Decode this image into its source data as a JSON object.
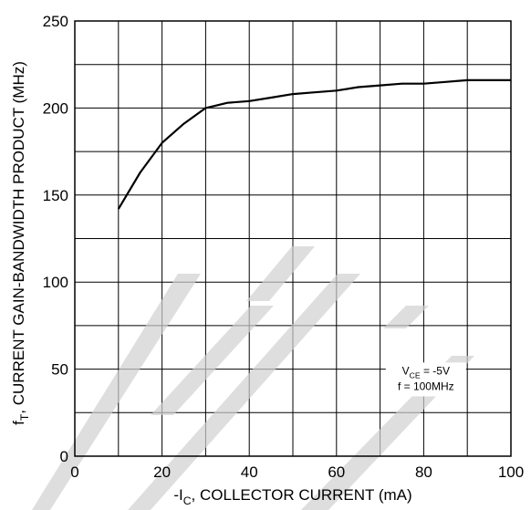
{
  "chart_data": {
    "type": "line",
    "xlim": [
      0,
      100
    ],
    "ylim": [
      0,
      250
    ],
    "x_ticks": [
      0,
      20,
      40,
      60,
      80,
      100
    ],
    "y_ticks": [
      0,
      50,
      100,
      150,
      200,
      250
    ],
    "x_grid_step": 10,
    "y_grid_step": 25,
    "grid": true,
    "xlabel": {
      "prefix": "-I",
      "sub": "C",
      "suffix": ", COLLECTOR CURRENT (mA)"
    },
    "ylabel": {
      "prefix": "f",
      "sub": "T",
      "suffix": ", CURRENT GAIN-BANDWIDTH PRODUCT (MHz)"
    },
    "annotation": {
      "line1_prefix": "V",
      "line1_sub": "CE",
      "line1_suffix": " = -5V",
      "line2": "f = 100MHz"
    },
    "series": [
      {
        "color": "#000000",
        "x": [
          10,
          15,
          20,
          25,
          30,
          35,
          40,
          45,
          50,
          55,
          60,
          65,
          70,
          75,
          80,
          85,
          90,
          95,
          100
        ],
        "y": [
          142,
          163,
          180,
          191,
          200,
          203,
          204,
          206,
          208,
          209,
          210,
          212,
          213,
          214,
          214,
          215,
          216,
          216,
          216
        ]
      }
    ]
  },
  "watermark": {
    "color": "#d0d0d0"
  }
}
